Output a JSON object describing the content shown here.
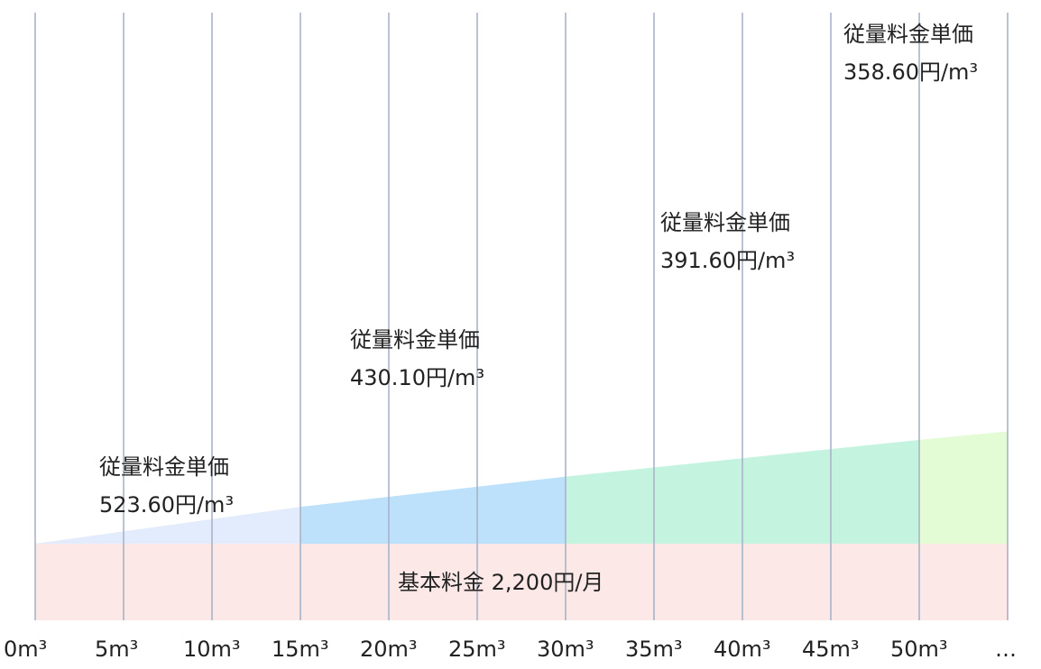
{
  "chart_data": {
    "type": "area",
    "title": "",
    "xlabel": "",
    "ylabel": "",
    "x_ticks": [
      "0m³",
      "5m³",
      "10m³",
      "15m³",
      "20m³",
      "25m³",
      "30m³",
      "35m³",
      "40m³",
      "45m³",
      "50m³",
      "…"
    ],
    "x_range": [
      0,
      55
    ],
    "base_fee": {
      "label": "基本料金 2,200円/月",
      "value": 2200,
      "color": "#fde8e8"
    },
    "tiers": [
      {
        "from": 0,
        "to": 15,
        "title": "従量料金単価",
        "price_label": "523.60円/m³",
        "unit_price": 523.6,
        "color": "#e3ecfc"
      },
      {
        "from": 15,
        "to": 30,
        "title": "従量料金単価",
        "price_label": "430.10円/m³",
        "unit_price": 430.1,
        "color": "#bde1fb"
      },
      {
        "from": 30,
        "to": 50,
        "title": "従量料金単価",
        "price_label": "391.60円/m³",
        "unit_price": 391.6,
        "color": "#c4f4df"
      },
      {
        "from": 50,
        "to": 55,
        "title": "従量料金単価",
        "price_label": "358.60円/m³",
        "unit_price": 358.6,
        "color": "#e3fcd5"
      }
    ],
    "grid": true,
    "grid_color": "#a8b4c8"
  }
}
